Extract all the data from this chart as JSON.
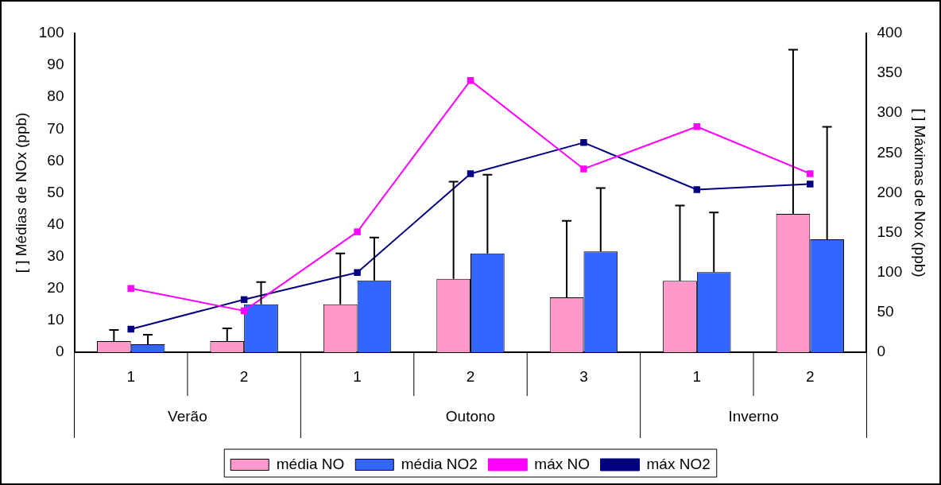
{
  "chart_data": {
    "type": "bar",
    "categories": [
      "1",
      "2",
      "1",
      "2",
      "3",
      "1",
      "2"
    ],
    "ylabel": "[ ] Médias de NOx (ppb)",
    "y2label": "[ ] Máximas de Nox (ppb)",
    "ylim": [
      0,
      100
    ],
    "yticks": [
      0,
      10,
      20,
      30,
      40,
      50,
      60,
      70,
      80,
      90,
      100
    ],
    "y2lim": [
      0,
      400
    ],
    "y2ticks": [
      0,
      50,
      100,
      150,
      200,
      250,
      300,
      350,
      400
    ],
    "annotations": [
      "Verão",
      "Outono",
      "Inverno"
    ],
    "legend": "bottom",
    "grid": false,
    "marker": "square",
    "series": [
      {
        "name": "média NO",
        "color": "#ff99cc",
        "values": [
          3.5,
          3.5,
          15,
          23,
          17.2,
          22.4,
          43.4
        ],
        "errors": [
          [
            3.5,
            7
          ],
          [
            3.5,
            7.5
          ],
          [
            15,
            31
          ],
          [
            23,
            53.5
          ],
          [
            17.2,
            41.2
          ],
          [
            22.4,
            46
          ],
          [
            43.4,
            94.9
          ]
        ]
      },
      {
        "name": "média NO2",
        "color": "#3366ff",
        "values": [
          2.5,
          15,
          22.5,
          31,
          31.6,
          25.1,
          35.4
        ],
        "errors": [
          [
            2.5,
            5.5
          ],
          [
            15,
            22
          ],
          [
            22.5,
            36
          ],
          [
            31,
            55.7
          ],
          [
            31.6,
            51.5
          ],
          [
            25.1,
            43.8
          ],
          [
            35.4,
            70.7
          ]
        ]
      },
      {
        "name": "máx NO",
        "type": "line",
        "axis": "y2",
        "color": "#ff00ff",
        "values": [
          80,
          52,
          151,
          341,
          230,
          283,
          224
        ]
      },
      {
        "name": "máx NO2",
        "type": "line",
        "axis": "y2",
        "color": "#000080",
        "values": [
          29,
          66,
          100,
          224,
          263,
          204,
          211
        ]
      }
    ]
  }
}
